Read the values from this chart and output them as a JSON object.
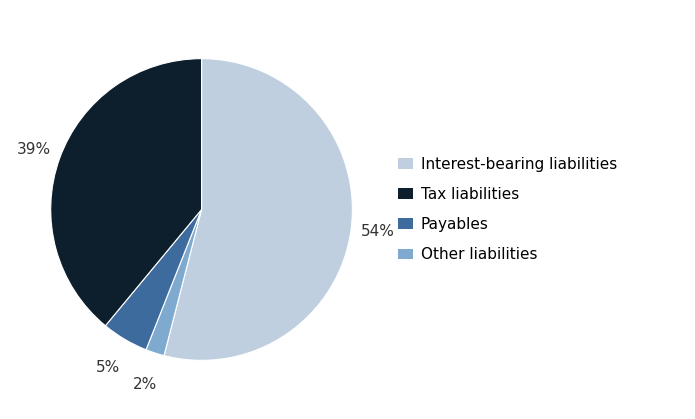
{
  "labels": [
    "Interest-bearing liabilities",
    "Tax liabilities",
    "Payables",
    "Other liabilities"
  ],
  "values": [
    54,
    39,
    5,
    2
  ],
  "colors": [
    "#bfcfe0",
    "#0d1f2d",
    "#3d6b9e",
    "#7faacf"
  ],
  "pct_labels": [
    "54%",
    "39%",
    "5%",
    "2%"
  ],
  "background_color": "#ffffff",
  "label_fontsize": 11,
  "legend_fontsize": 11,
  "startangle": 90
}
